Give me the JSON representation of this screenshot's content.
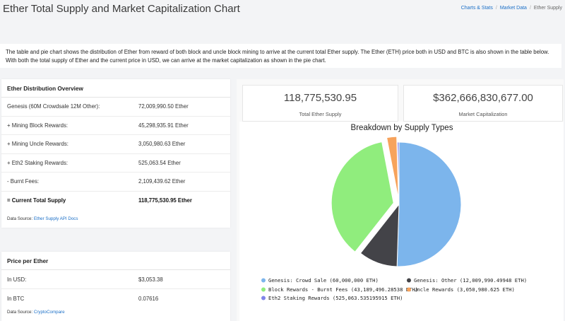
{
  "header": {
    "title": "Ether Total Supply and Market Capitalization Chart",
    "breadcrumb": [
      "Charts & Stats",
      "Market Data",
      "Ether Supply"
    ]
  },
  "intro": "The table and pie chart shows the distribution of Ether from reward of both block and uncle block mining to arrive at the current total Ether supply. The Ether (ETH) price both in USD and BTC is also shown in the table below. With both the total supply of Ether and the current price in USD, we can arrive at the market capitalization as shown in the pie chart.",
  "distribution": {
    "title": "Ether Distribution Overview",
    "rows": [
      {
        "label": "Genesis (60M Crowdsale 12M Other):",
        "value": "72,009,990.50 Ether"
      },
      {
        "label": "+ Mining Block Rewards:",
        "value": "45,298,935.91 Ether"
      },
      {
        "label": "+ Mining Uncle Rewards:",
        "value": "3,050,980.63 Ether"
      },
      {
        "label": "+ Eth2 Staking Rewards:",
        "value": "525,063.54 Ether"
      },
      {
        "label": "- Burnt Fees:",
        "value": "2,109,439.62 Ether"
      },
      {
        "label": "= Current Total Supply",
        "value": "118,775,530.95 Ether"
      }
    ],
    "source_label": "Data Source:",
    "source_link": "Ether Supply API Docs"
  },
  "price": {
    "title": "Price per Ether",
    "rows": [
      {
        "label": "In USD:",
        "value": "$3,053.38"
      },
      {
        "label": "In BTC",
        "value": "0.07616"
      }
    ],
    "source_label": "Data Source:",
    "source_link": "CryptoCompare"
  },
  "stats": {
    "total_supply": {
      "value": "118,775,530.95",
      "caption": "Total Ether Supply"
    },
    "market_cap": {
      "value": "$362,666,830,677.00",
      "caption": "Market Capitalization"
    }
  },
  "chart_data": {
    "type": "pie",
    "title": "Breakdown by Supply Types",
    "legend_position": "bottom",
    "slices": [
      {
        "name": "Genesis: Crowd Sale (60,000,000 ETH)",
        "value": 60000000,
        "color": "#7cb5ec"
      },
      {
        "name": "Genesis: Other (12,009,990.49948 ETH)",
        "value": 12009990.49948,
        "color": "#434348"
      },
      {
        "name": "Block Rewards - Burnt Fees (43,189,496.28538 ETH)",
        "value": 43189496.28538,
        "color": "#90ed7d"
      },
      {
        "name": "Uncle Rewards (3,050,980.625 ETH)",
        "value": 3050980.625,
        "color": "#f7a35c"
      },
      {
        "name": "Eth2 Staking Rewards (525,063.535195915 ETH)",
        "value": 525063.535195915,
        "color": "#8085e9"
      }
    ]
  }
}
